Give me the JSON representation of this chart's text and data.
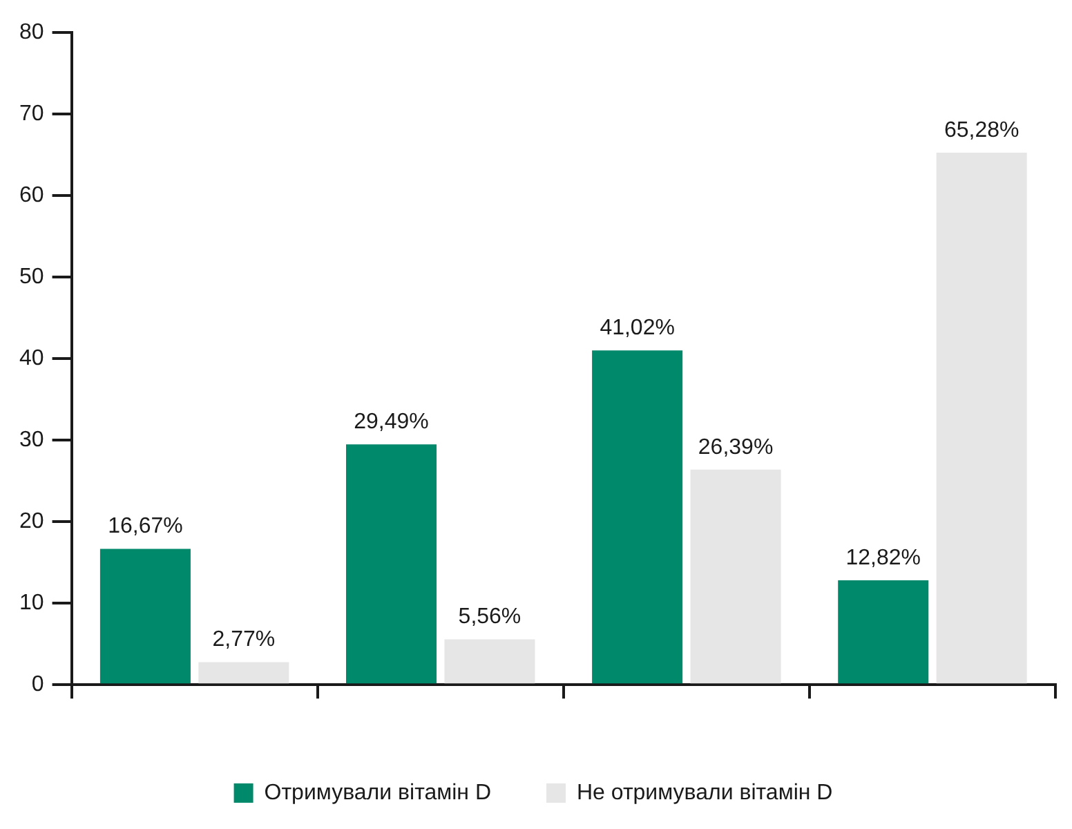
{
  "chart_data": {
    "type": "bar",
    "categories": [
      null,
      null,
      null,
      null
    ],
    "series": [
      {
        "name": "Отримували вітамін D",
        "color": "#00896a",
        "values": [
          16.67,
          29.49,
          41.02,
          12.82
        ],
        "value_labels": [
          "16,67%",
          "29,49%",
          "41,02%",
          "12,82%"
        ]
      },
      {
        "name": "Не отримували вітамін D",
        "color": "#e6e6e6",
        "values": [
          2.77,
          5.56,
          26.39,
          65.28
        ],
        "value_labels": [
          "2,77%",
          "5,56%",
          "26,39%",
          "65,28%"
        ]
      }
    ],
    "ylim": [
      0,
      80
    ],
    "yticks": [
      0,
      10,
      20,
      30,
      40,
      50,
      60,
      70,
      80
    ],
    "legend": "bottom"
  }
}
